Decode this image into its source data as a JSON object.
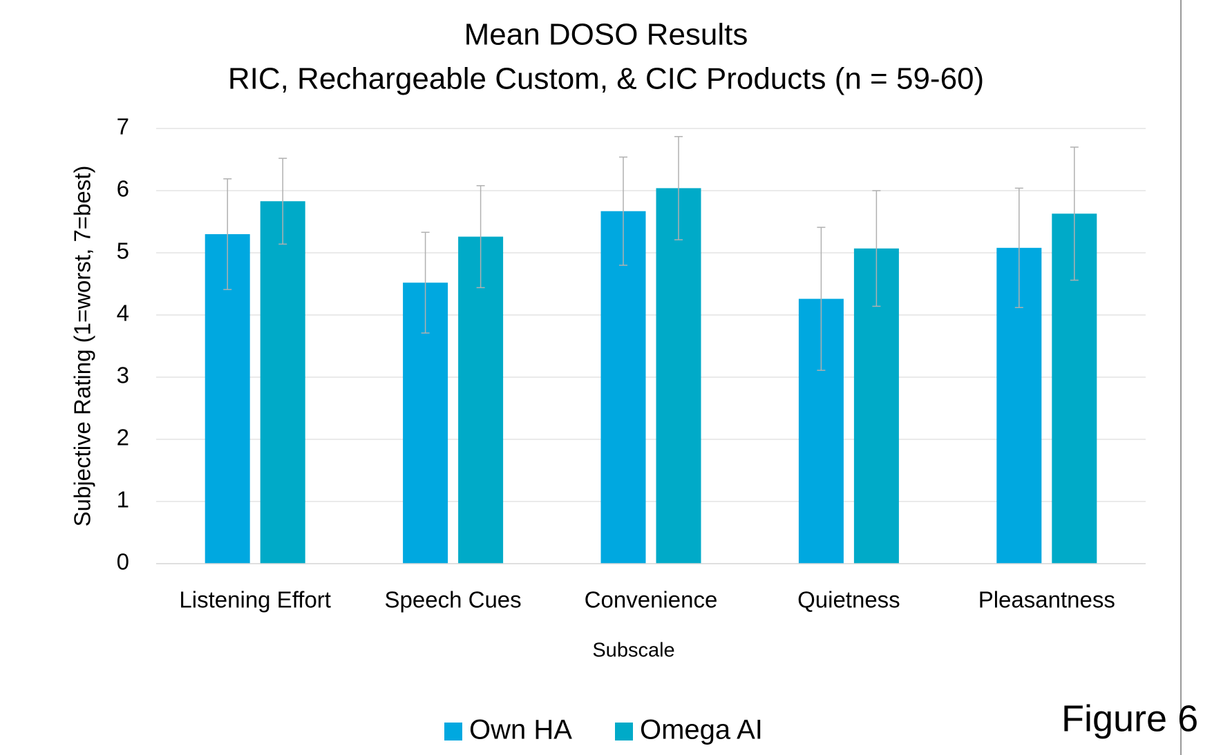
{
  "chart_data": {
    "type": "bar",
    "title": "Mean DOSO Results",
    "subtitle": "RIC, Rechargeable Custom, & CIC Products (n = 59-60)",
    "x_label": "Subscale",
    "y_label": "Subjective Rating (1=worst, 7=best)",
    "annotation": "Figure 6",
    "categories": [
      "Listening Effort",
      "Speech Cues",
      "Convenience",
      "Quietness",
      "Pleasantness"
    ],
    "series": [
      {
        "name": "Own HA",
        "color": "#00a8e0",
        "values": [
          5.3,
          4.52,
          5.67,
          4.26,
          5.08
        ],
        "errors": [
          0.89,
          0.81,
          0.87,
          1.15,
          0.96
        ]
      },
      {
        "name": "Omega AI",
        "color": "#00aac8",
        "values": [
          5.83,
          5.26,
          6.04,
          5.07,
          5.63
        ],
        "errors": [
          0.69,
          0.82,
          0.83,
          0.93,
          1.07
        ]
      }
    ],
    "ylim": [
      0,
      7
    ],
    "yticks": [
      0,
      1,
      2,
      3,
      4,
      5,
      6,
      7
    ],
    "grid": true,
    "legend": "bottom"
  }
}
